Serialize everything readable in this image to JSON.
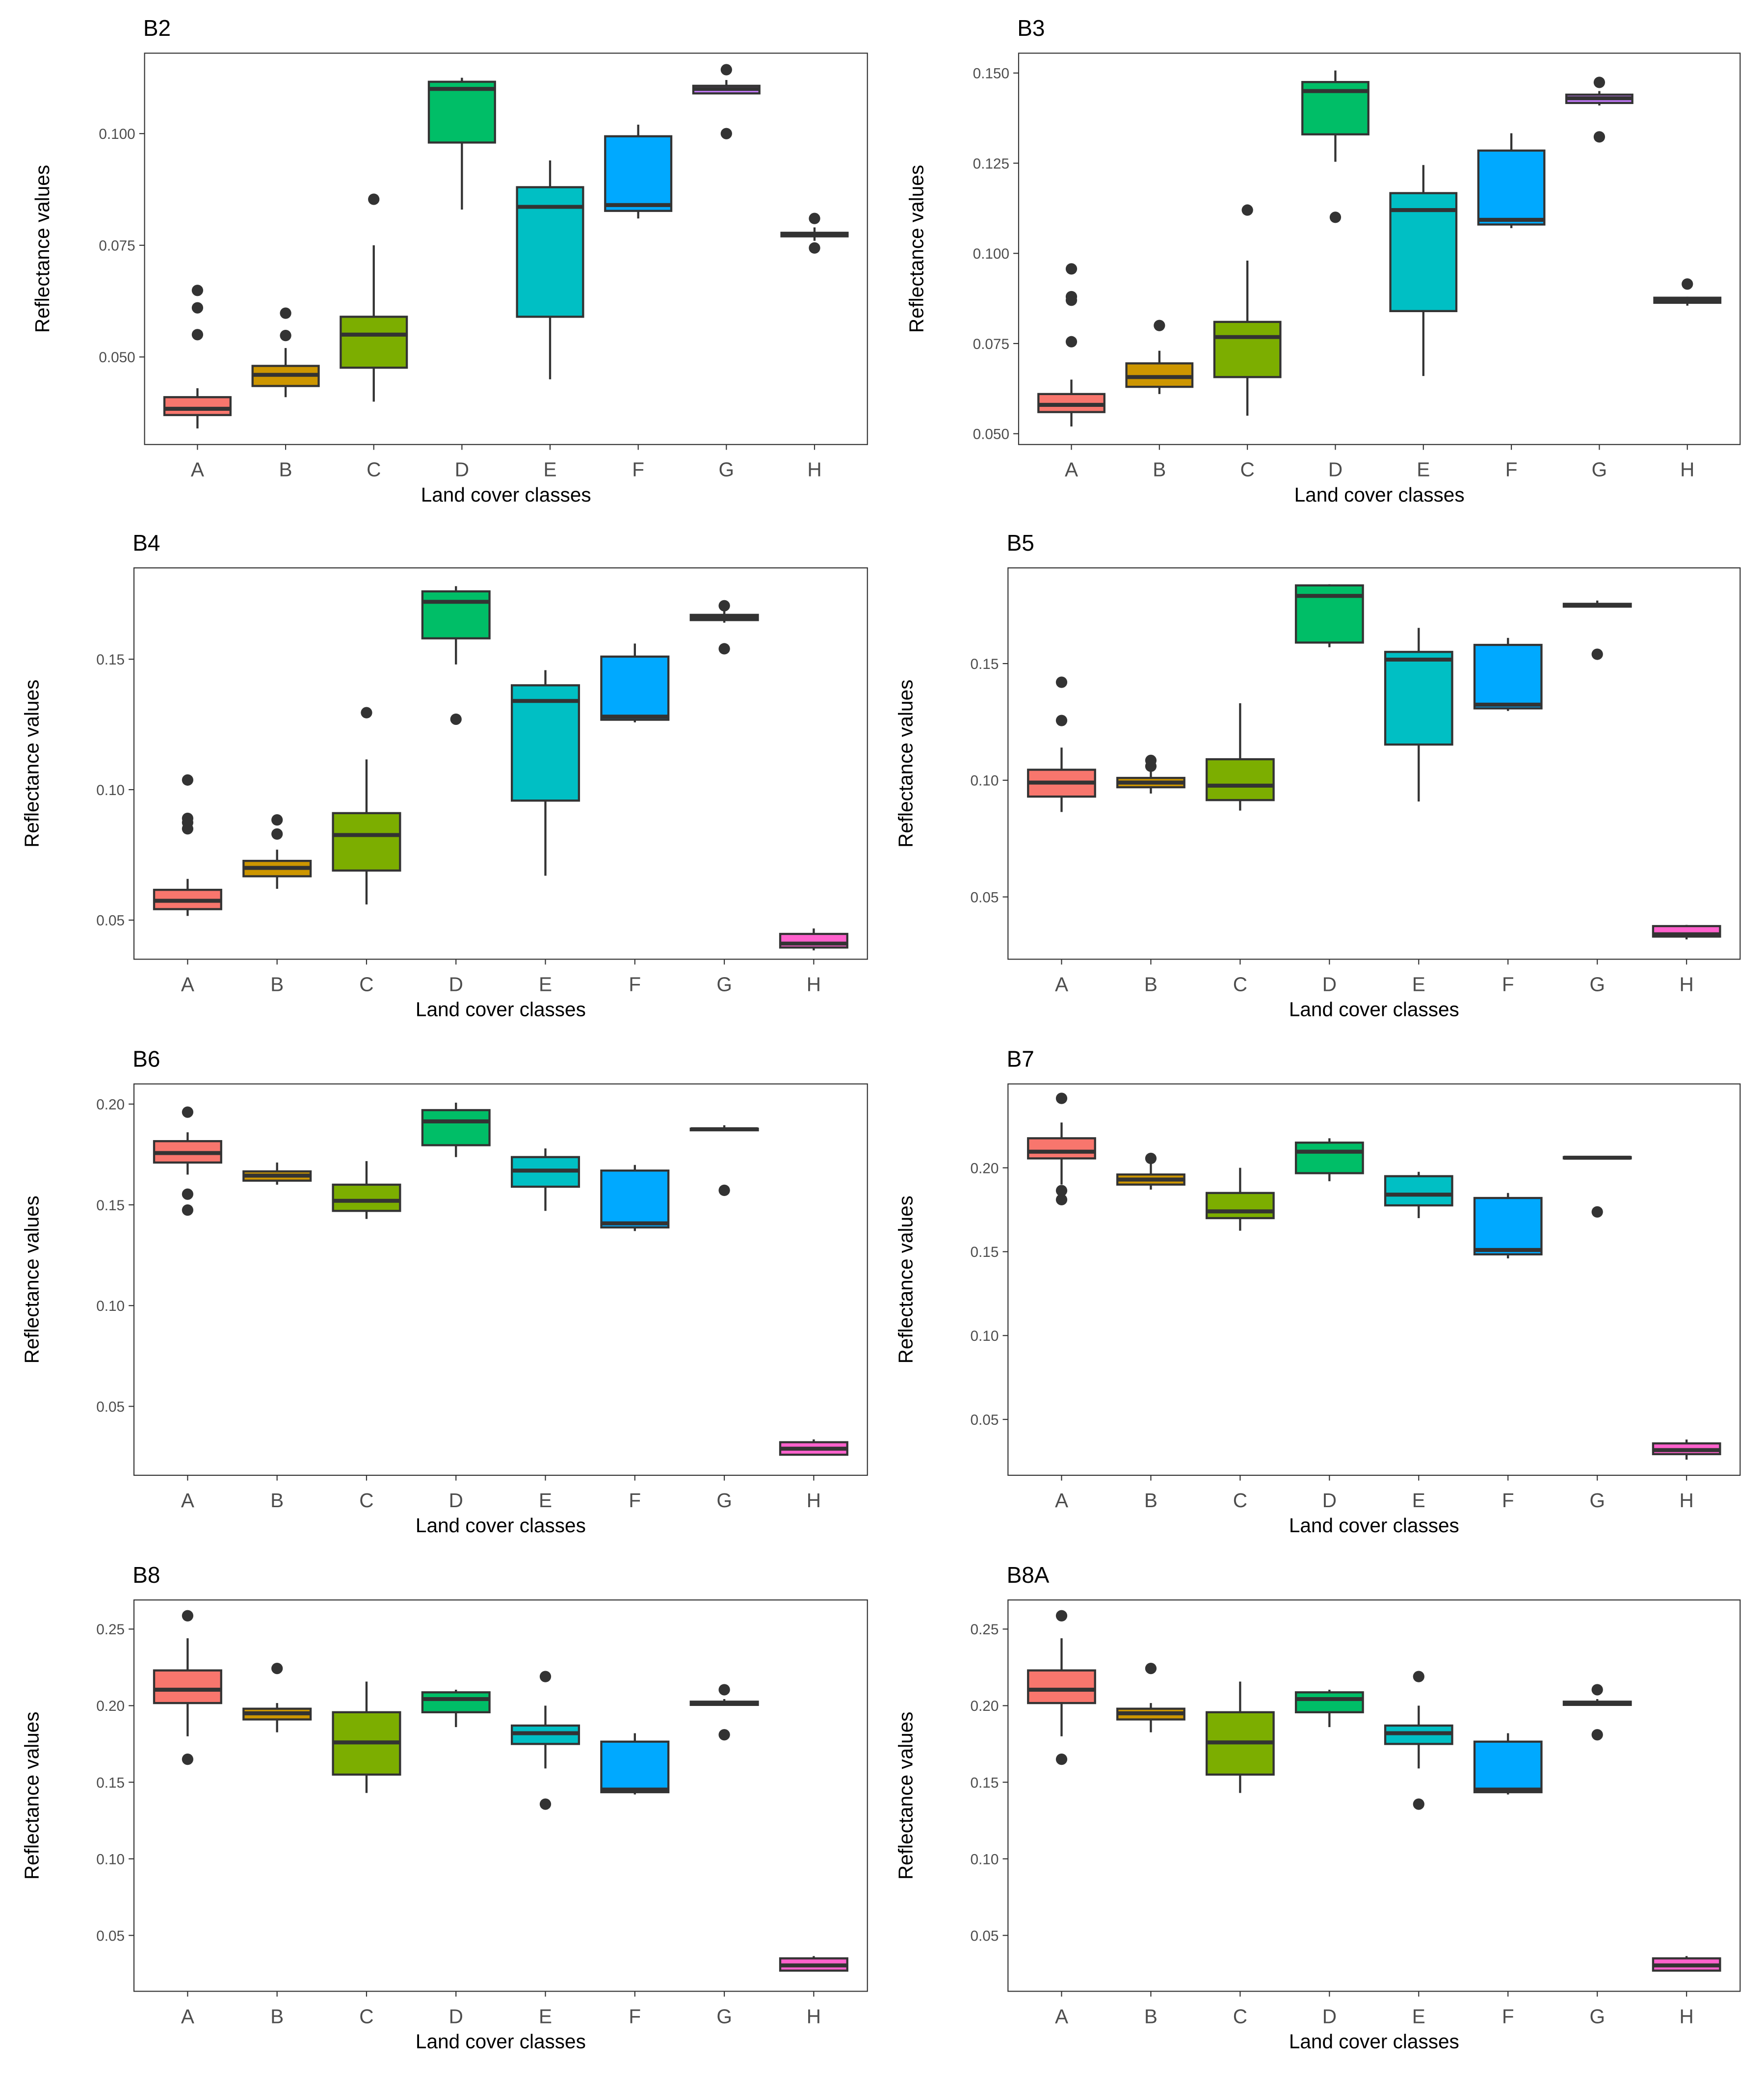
{
  "chart_data": [
    {
      "type": "box",
      "title": "B2",
      "xlabel": "Land cover classes",
      "ylabel": "Reflectance values",
      "ylim": [
        0.0304,
        0.118
      ],
      "yticks": [
        0.05,
        0.075,
        0.1
      ],
      "ytick_labels": [
        "0.050",
        "0.075",
        "0.100"
      ],
      "categories": [
        "A",
        "B",
        "C",
        "D",
        "E",
        "F",
        "G",
        "H"
      ],
      "boxes": [
        [
          0.034,
          0.037,
          0.0384,
          0.041,
          0.043
        ],
        [
          0.041,
          0.0435,
          0.046,
          0.048,
          0.052
        ],
        [
          0.04,
          0.0476,
          0.055,
          0.059,
          0.075
        ],
        [
          0.083,
          0.098,
          0.11,
          0.1116,
          0.1125
        ],
        [
          0.045,
          0.059,
          0.0836,
          0.088,
          0.094
        ],
        [
          0.081,
          0.0827,
          0.084,
          0.0994,
          0.102
        ],
        [
          0.109,
          0.109,
          0.11,
          0.1107,
          0.112
        ],
        [
          0.076,
          0.077,
          0.0774,
          0.0778,
          0.079
        ]
      ],
      "outliers": [
        [
          0.0649,
          0.061,
          0.055
        ],
        [
          0.0598,
          0.0548
        ],
        [
          0.0853
        ],
        [],
        [],
        [],
        [
          0.1143,
          0.1
        ],
        [
          0.081,
          0.0744
        ]
      ]
    },
    {
      "type": "box",
      "title": "B3",
      "xlabel": "Land cover classes",
      "ylabel": "Reflectance values",
      "ylim": [
        0.047,
        0.1555
      ],
      "yticks": [
        0.05,
        0.075,
        0.1,
        0.125,
        0.15
      ],
      "ytick_labels": [
        "0.050",
        "0.075",
        "0.100",
        "0.125",
        "0.150"
      ],
      "categories": [
        "A",
        "B",
        "C",
        "D",
        "E",
        "F",
        "G",
        "H"
      ],
      "boxes": [
        [
          0.052,
          0.056,
          0.058,
          0.061,
          0.065
        ],
        [
          0.061,
          0.063,
          0.0657,
          0.0695,
          0.073
        ],
        [
          0.055,
          0.0657,
          0.0768,
          0.081,
          0.098
        ],
        [
          0.1254,
          0.133,
          0.145,
          0.1475,
          0.1507
        ],
        [
          0.066,
          0.084,
          0.112,
          0.1167,
          0.1245
        ],
        [
          0.107,
          0.108,
          0.1093,
          0.1285,
          0.1333
        ],
        [
          0.141,
          0.1417,
          0.143,
          0.144,
          0.145
        ],
        [
          0.0855,
          0.0863,
          0.087,
          0.0877,
          0.088
        ]
      ],
      "outliers": [
        [
          0.0957,
          0.088,
          0.087,
          0.0755
        ],
        [
          0.08
        ],
        [
          0.112
        ],
        [
          0.11
        ],
        [],
        [],
        [
          0.1474,
          0.1323
        ],
        [
          0.0915
        ]
      ]
    },
    {
      "type": "box",
      "title": "B4",
      "xlabel": "Land cover classes",
      "ylabel": "Reflectance values",
      "ylim": [
        0.035,
        0.185
      ],
      "yticks": [
        0.05,
        0.1,
        0.15
      ],
      "ytick_labels": [
        "0.05",
        "0.10",
        "0.15"
      ],
      "categories": [
        "A",
        "B",
        "C",
        "D",
        "E",
        "F",
        "G",
        "H"
      ],
      "boxes": [
        [
          0.0516,
          0.0542,
          0.0574,
          0.0616,
          0.0658
        ],
        [
          0.062,
          0.0668,
          0.07,
          0.0727,
          0.077
        ],
        [
          0.056,
          0.069,
          0.0826,
          0.091,
          0.1116
        ],
        [
          0.148,
          0.158,
          0.172,
          0.176,
          0.178
        ],
        [
          0.067,
          0.0958,
          0.134,
          0.14,
          0.1458
        ],
        [
          0.1258,
          0.1268,
          0.128,
          0.151,
          0.156
        ],
        [
          0.164,
          0.165,
          0.166,
          0.167,
          0.1686
        ],
        [
          0.0384,
          0.0395,
          0.041,
          0.0447,
          0.0468
        ]
      ],
      "outliers": [
        [
          0.1037,
          0.089,
          0.0874,
          0.085
        ],
        [
          0.0884,
          0.083
        ],
        [
          0.1295
        ],
        [
          0.127
        ],
        [],
        [],
        [
          0.1705,
          0.154
        ],
        []
      ]
    },
    {
      "type": "box",
      "title": "B5",
      "xlabel": "Land cover classes",
      "ylabel": "Reflectance values",
      "ylim": [
        0.0233,
        0.191
      ],
      "yticks": [
        0.05,
        0.1,
        0.15
      ],
      "ytick_labels": [
        "0.05",
        "0.10",
        "0.15"
      ],
      "categories": [
        "A",
        "B",
        "C",
        "D",
        "E",
        "F",
        "G",
        "H"
      ],
      "boxes": [
        [
          0.0864,
          0.093,
          0.099,
          0.1045,
          0.114
        ],
        [
          0.0943,
          0.097,
          0.099,
          0.101,
          0.1055
        ],
        [
          0.087,
          0.0915,
          0.0977,
          0.109,
          0.133
        ],
        [
          0.157,
          0.159,
          0.179,
          0.1835,
          0.184
        ],
        [
          0.0909,
          0.1153,
          0.1517,
          0.155,
          0.1653
        ],
        [
          0.1297,
          0.1308,
          0.1324,
          0.158,
          0.161
        ],
        [
          0.174,
          0.1744,
          0.175,
          0.1756,
          0.177
        ],
        [
          0.0318,
          0.033,
          0.034,
          0.0375,
          0.038
        ]
      ],
      "outliers": [
        [
          0.142,
          0.1256
        ],
        [
          0.1085,
          0.106
        ],
        [],
        [],
        [],
        [],
        [
          0.154
        ],
        []
      ]
    },
    {
      "type": "box",
      "title": "B6",
      "xlabel": "Land cover classes",
      "ylabel": "Reflectance values",
      "ylim": [
        0.0158,
        0.21
      ],
      "yticks": [
        0.05,
        0.1,
        0.15,
        0.2
      ],
      "ytick_labels": [
        "0.05",
        "0.10",
        "0.15",
        "0.20"
      ],
      "categories": [
        "A",
        "B",
        "C",
        "D",
        "E",
        "F",
        "G",
        "H"
      ],
      "boxes": [
        [
          0.165,
          0.171,
          0.1757,
          0.1816,
          0.186
        ],
        [
          0.16,
          0.162,
          0.1645,
          0.1666,
          0.171
        ],
        [
          0.143,
          0.147,
          0.152,
          0.16,
          0.1717
        ],
        [
          0.1737,
          0.1796,
          0.1914,
          0.197,
          0.2007
        ],
        [
          0.147,
          0.159,
          0.167,
          0.1737,
          0.178
        ],
        [
          0.137,
          0.1388,
          0.1408,
          0.167,
          0.1698
        ],
        [
          0.187,
          0.187,
          0.1875,
          0.1878,
          0.1895
        ],
        [
          0.0257,
          0.026,
          0.029,
          0.0322,
          0.0336
        ]
      ],
      "outliers": [
        [
          0.196,
          0.1553,
          0.1474
        ],
        [],
        [],
        [],
        [],
        [],
        [
          0.1572
        ],
        []
      ]
    },
    {
      "type": "box",
      "title": "B7",
      "xlabel": "Land cover classes",
      "ylabel": "Reflectance values",
      "ylim": [
        0.0167,
        0.25
      ],
      "yticks": [
        0.05,
        0.1,
        0.15,
        0.2
      ],
      "ytick_labels": [
        "0.05",
        "0.10",
        "0.15",
        "0.20"
      ],
      "categories": [
        "A",
        "B",
        "C",
        "D",
        "E",
        "F",
        "G",
        "H"
      ],
      "boxes": [
        [
          0.19,
          0.2056,
          0.2096,
          0.2176,
          0.227
        ],
        [
          0.187,
          0.19,
          0.193,
          0.196,
          0.2024
        ],
        [
          0.1625,
          0.17,
          0.174,
          0.185,
          0.2
        ],
        [
          0.192,
          0.1968,
          0.2096,
          0.215,
          0.2176
        ],
        [
          0.17,
          0.1776,
          0.184,
          0.195,
          0.1976
        ],
        [
          0.146,
          0.1484,
          0.151,
          0.182,
          0.185
        ],
        [
          0.2056,
          0.2056,
          0.206,
          0.2064,
          0.2064
        ],
        [
          0.026,
          0.0293,
          0.0317,
          0.0357,
          0.038
        ]
      ],
      "outliers": [
        [
          0.2414,
          0.1864,
          0.181
        ],
        [
          0.2056
        ],
        [],
        [],
        [],
        [],
        [
          0.1737
        ],
        []
      ]
    },
    {
      "type": "box",
      "title": "B8",
      "xlabel": "Land cover classes",
      "ylabel": "Reflectance values",
      "ylim": [
        0.0135,
        0.269
      ],
      "yticks": [
        0.05,
        0.1,
        0.15,
        0.2,
        0.25
      ],
      "ytick_labels": [
        "0.05",
        "0.10",
        "0.15",
        "0.20",
        "0.25"
      ],
      "categories": [
        "A",
        "B",
        "C",
        "D",
        "E",
        "F",
        "G",
        "H"
      ],
      "boxes": [
        [
          0.18,
          0.2017,
          0.2104,
          0.223,
          0.244
        ],
        [
          0.1826,
          0.191,
          0.195,
          0.198,
          0.2017
        ],
        [
          0.143,
          0.155,
          0.176,
          0.1957,
          0.2157
        ],
        [
          0.186,
          0.1957,
          0.2043,
          0.2087,
          0.2104
        ],
        [
          0.159,
          0.175,
          0.182,
          0.187,
          0.2
        ],
        [
          0.142,
          0.1435,
          0.1452,
          0.1765,
          0.182
        ],
        [
          0.2,
          0.2005,
          0.2017,
          0.2026,
          0.2043
        ],
        [
          0.0265,
          0.027,
          0.0304,
          0.035,
          0.0365
        ]
      ],
      "outliers": [
        [
          0.2587,
          0.165
        ],
        [
          0.2243
        ],
        [],
        [],
        [
          0.219,
          0.1357
        ],
        [],
        [
          0.2104,
          0.181
        ],
        []
      ]
    },
    {
      "type": "box",
      "title": "B8A",
      "xlabel": "Land cover classes",
      "ylabel": "Reflectance values",
      "ylim": [
        0.0135,
        0.269
      ],
      "yticks": [
        0.05,
        0.1,
        0.15,
        0.2,
        0.25
      ],
      "ytick_labels": [
        "0.05",
        "0.10",
        "0.15",
        "0.20",
        "0.25"
      ],
      "categories": [
        "A",
        "B",
        "C",
        "D",
        "E",
        "F",
        "G",
        "H"
      ],
      "boxes": [
        [
          0.18,
          0.2017,
          0.2104,
          0.223,
          0.244
        ],
        [
          0.1826,
          0.191,
          0.195,
          0.198,
          0.2017
        ],
        [
          0.143,
          0.155,
          0.176,
          0.1957,
          0.2157
        ],
        [
          0.186,
          0.1957,
          0.2043,
          0.2087,
          0.2104
        ],
        [
          0.159,
          0.175,
          0.182,
          0.187,
          0.2
        ],
        [
          0.142,
          0.1435,
          0.1452,
          0.1765,
          0.182
        ],
        [
          0.2,
          0.2005,
          0.2017,
          0.2026,
          0.2043
        ],
        [
          0.0265,
          0.027,
          0.0304,
          0.035,
          0.0365
        ]
      ],
      "outliers": [
        [
          0.2587,
          0.165
        ],
        [
          0.2243
        ],
        [],
        [],
        [
          0.219,
          0.1357
        ],
        [],
        [
          0.2104,
          0.181
        ],
        []
      ]
    }
  ],
  "colors": [
    "#F8766D",
    "#CD9600",
    "#7CAE00",
    "#00BE67",
    "#00BFC4",
    "#00A9FF",
    "#C77CFF",
    "#FF61CC"
  ]
}
